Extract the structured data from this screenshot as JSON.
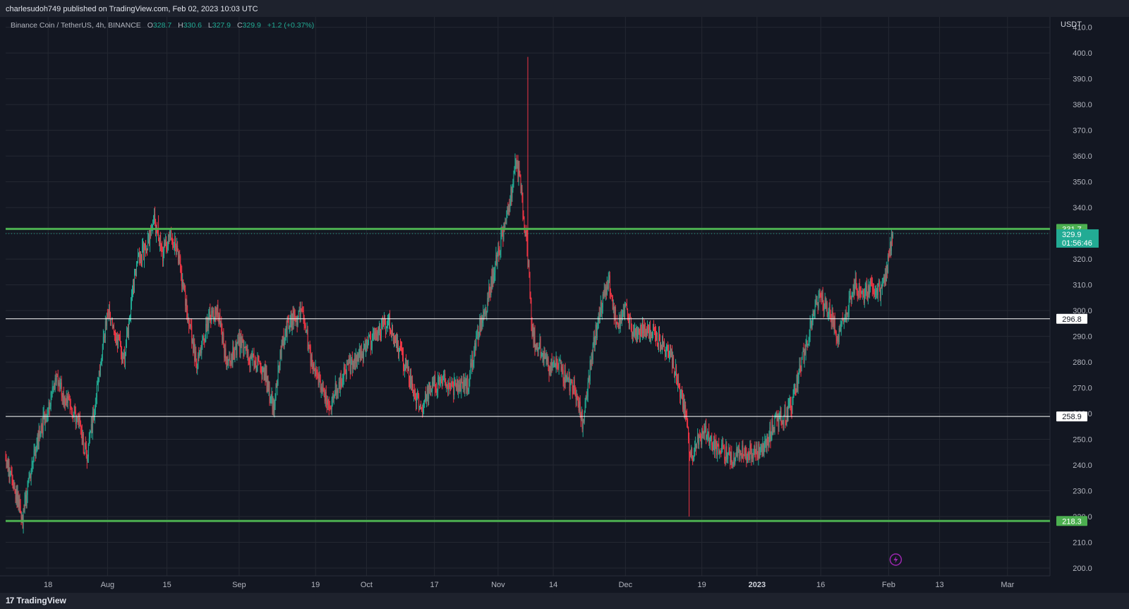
{
  "header": {
    "published": "charlesudoh749 published on TradingView.com, Feb 02, 2023 10:03 UTC"
  },
  "legend": {
    "symbol": "Binance Coin / TetherUS, 4h, BINANCE",
    "o_label": "O",
    "o": "328.7",
    "h_label": "H",
    "h": "330.6",
    "l_label": "L",
    "l": "327.9",
    "c_label": "C",
    "c": "329.9",
    "change": "+1.2 (+0.37%)"
  },
  "footer": {
    "logo_text": "TradingView",
    "logo_mark": "17"
  },
  "colors": {
    "background": "#131722",
    "grid": "#242832",
    "up": "#22ab94",
    "down": "#f23645",
    "support_line": "#4caf50",
    "level_line": "#ffffff",
    "axis_text": "#b2b5be"
  },
  "chart_data": {
    "type": "candlestick",
    "title": "Binance Coin / TetherUS, 4h, BINANCE",
    "currency": "USDT",
    "y_ticks": [
      200,
      210,
      220,
      230,
      240,
      250,
      260,
      270,
      280,
      290,
      300,
      310,
      320,
      330,
      340,
      350,
      360,
      370,
      380,
      390,
      400,
      410
    ],
    "y_tick_labels": [
      "200.0",
      "210.0",
      "220.0",
      "230.0",
      "240.0",
      "250.0",
      "260.0",
      "270.0",
      "280.0",
      "290.0",
      "300.0",
      "310.0",
      "320.0",
      "330.0",
      "340.0",
      "350.0",
      "360.0",
      "370.0",
      "380.0",
      "390.0",
      "400.0",
      "410.0"
    ],
    "ylim": [
      197,
      414
    ],
    "x_ticks": [
      {
        "date": "2022-07-18",
        "label": "18",
        "bold": false
      },
      {
        "date": "2022-08-01",
        "label": "Aug",
        "bold": false
      },
      {
        "date": "2022-08-15",
        "label": "15",
        "bold": false
      },
      {
        "date": "2022-09-01",
        "label": "Sep",
        "bold": false
      },
      {
        "date": "2022-09-19",
        "label": "19",
        "bold": false
      },
      {
        "date": "2022-10-01",
        "label": "Oct",
        "bold": false
      },
      {
        "date": "2022-10-17",
        "label": "17",
        "bold": false
      },
      {
        "date": "2022-11-01",
        "label": "Nov",
        "bold": false
      },
      {
        "date": "2022-11-14",
        "label": "14",
        "bold": false
      },
      {
        "date": "2022-12-01",
        "label": "Dec",
        "bold": false
      },
      {
        "date": "2022-12-19",
        "label": "19",
        "bold": false
      },
      {
        "date": "2023-01-01",
        "label": "2023",
        "bold": true
      },
      {
        "date": "2023-01-16",
        "label": "16",
        "bold": false
      },
      {
        "date": "2023-02-01",
        "label": "Feb",
        "bold": false
      },
      {
        "date": "2023-02-13",
        "label": "13",
        "bold": false
      },
      {
        "date": "2023-03-01",
        "label": "Mar",
        "bold": false
      }
    ],
    "xlim": [
      "2022-07-08",
      "2023-03-11"
    ],
    "grid": true,
    "horizontal_levels": [
      {
        "value": 331.7,
        "label": "331.7",
        "style": "green-thick"
      },
      {
        "value": 296.8,
        "label": "296.8",
        "style": "white-thin"
      },
      {
        "value": 258.9,
        "label": "258.9",
        "style": "white-thin"
      },
      {
        "value": 218.3,
        "label": "218.3",
        "style": "green-thick"
      }
    ],
    "last_price": {
      "value": 329.9,
      "label": "329.9",
      "countdown": "01:56:46"
    },
    "price_path": [
      [
        "2022-07-08",
        243
      ],
      [
        "2022-07-10",
        232
      ],
      [
        "2022-07-12",
        218
      ],
      [
        "2022-07-14",
        240
      ],
      [
        "2022-07-17",
        257
      ],
      [
        "2022-07-20",
        272
      ],
      [
        "2022-07-22",
        265
      ],
      [
        "2022-07-25",
        258
      ],
      [
        "2022-07-27",
        243
      ],
      [
        "2022-07-29",
        262
      ],
      [
        "2022-08-01",
        299
      ],
      [
        "2022-08-03",
        290
      ],
      [
        "2022-08-05",
        282
      ],
      [
        "2022-08-08",
        320
      ],
      [
        "2022-08-10",
        324
      ],
      [
        "2022-08-12",
        334
      ],
      [
        "2022-08-14",
        322
      ],
      [
        "2022-08-16",
        330
      ],
      [
        "2022-08-18",
        318
      ],
      [
        "2022-08-20",
        296
      ],
      [
        "2022-08-22",
        280
      ],
      [
        "2022-08-25",
        298
      ],
      [
        "2022-08-27",
        300
      ],
      [
        "2022-08-29",
        280
      ],
      [
        "2022-09-01",
        287
      ],
      [
        "2022-09-04",
        280
      ],
      [
        "2022-09-07",
        276
      ],
      [
        "2022-09-09",
        262
      ],
      [
        "2022-09-11",
        285
      ],
      [
        "2022-09-13",
        296
      ],
      [
        "2022-09-16",
        299
      ],
      [
        "2022-09-18",
        280
      ],
      [
        "2022-09-20",
        272
      ],
      [
        "2022-09-22",
        262
      ],
      [
        "2022-09-25",
        274
      ],
      [
        "2022-09-28",
        280
      ],
      [
        "2022-10-01",
        286
      ],
      [
        "2022-10-03",
        290
      ],
      [
        "2022-10-06",
        296
      ],
      [
        "2022-10-09",
        283
      ],
      [
        "2022-10-12",
        270
      ],
      [
        "2022-10-14",
        262
      ],
      [
        "2022-10-16",
        270
      ],
      [
        "2022-10-19",
        273
      ],
      [
        "2022-10-22",
        270
      ],
      [
        "2022-10-25",
        272
      ],
      [
        "2022-10-27",
        290
      ],
      [
        "2022-10-29",
        300
      ],
      [
        "2022-11-01",
        323
      ],
      [
        "2022-11-02",
        328
      ],
      [
        "2022-11-04",
        344
      ],
      [
        "2022-11-05",
        358
      ],
      [
        "2022-11-06",
        352
      ],
      [
        "2022-11-07",
        336
      ],
      [
        "2022-11-08",
        320
      ],
      [
        "2022-11-09",
        290
      ],
      [
        "2022-11-11",
        285
      ],
      [
        "2022-11-13",
        278
      ],
      [
        "2022-11-15",
        280
      ],
      [
        "2022-11-17",
        272
      ],
      [
        "2022-11-19",
        270
      ],
      [
        "2022-11-21",
        256
      ],
      [
        "2022-11-23",
        282
      ],
      [
        "2022-11-25",
        300
      ],
      [
        "2022-11-27",
        312
      ],
      [
        "2022-11-29",
        295
      ],
      [
        "2022-12-01",
        300
      ],
      [
        "2022-12-03",
        290
      ],
      [
        "2022-12-06",
        293
      ],
      [
        "2022-12-09",
        288
      ],
      [
        "2022-12-11",
        284
      ],
      [
        "2022-12-13",
        275
      ],
      [
        "2022-12-15",
        260
      ],
      [
        "2022-12-16",
        248
      ],
      [
        "2022-12-17",
        242
      ],
      [
        "2022-12-18",
        250
      ],
      [
        "2022-12-20",
        252
      ],
      [
        "2022-12-23",
        246
      ],
      [
        "2022-12-26",
        243
      ],
      [
        "2022-12-29",
        245
      ],
      [
        "2023-01-01",
        246
      ],
      [
        "2023-01-03",
        247
      ],
      [
        "2023-01-05",
        256
      ],
      [
        "2023-01-07",
        259
      ],
      [
        "2023-01-09",
        262
      ],
      [
        "2023-01-11",
        277
      ],
      [
        "2023-01-13",
        288
      ],
      [
        "2023-01-14",
        298
      ],
      [
        "2023-01-16",
        305
      ],
      [
        "2023-01-18",
        300
      ],
      [
        "2023-01-20",
        290
      ],
      [
        "2023-01-22",
        300
      ],
      [
        "2023-01-24",
        310
      ],
      [
        "2023-01-26",
        306
      ],
      [
        "2023-01-28",
        310
      ],
      [
        "2023-01-30",
        308
      ],
      [
        "2023-01-31",
        312
      ],
      [
        "2023-02-01",
        320
      ],
      [
        "2023-02-02",
        329.9
      ]
    ],
    "price_path_note": "",
    "wick_extremes": [
      {
        "date": "2022-11-08",
        "high": 398.5
      },
      {
        "date": "2022-11-05",
        "high": 361
      },
      {
        "date": "2022-12-16",
        "low": 220
      },
      {
        "date": "2022-07-12",
        "low": 216.5
      },
      {
        "date": "2022-08-13",
        "high": 337
      }
    ]
  },
  "axis": {
    "unit_label": "USDT"
  }
}
